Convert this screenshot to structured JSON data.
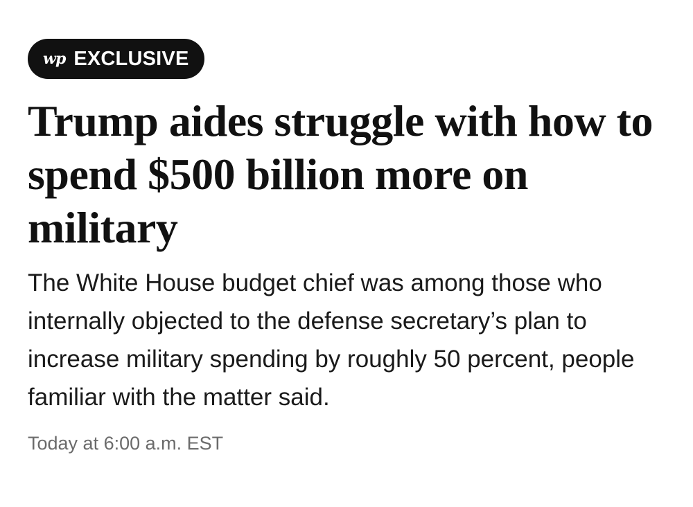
{
  "badge": {
    "logo": "wp",
    "label": "EXCLUSIVE"
  },
  "article": {
    "headline": "Trump aides struggle with how to spend $500 billion more on military",
    "dek": "The White House budget chief was among those who internally objected to the defense secretary’s plan to increase military spending by roughly 50 percent, people familiar with the matter said.",
    "timestamp": "Today at 6:00 a.m. EST"
  },
  "colors": {
    "badge_background": "#111111",
    "headline": "#111111",
    "timestamp": "#6b6b6b"
  }
}
